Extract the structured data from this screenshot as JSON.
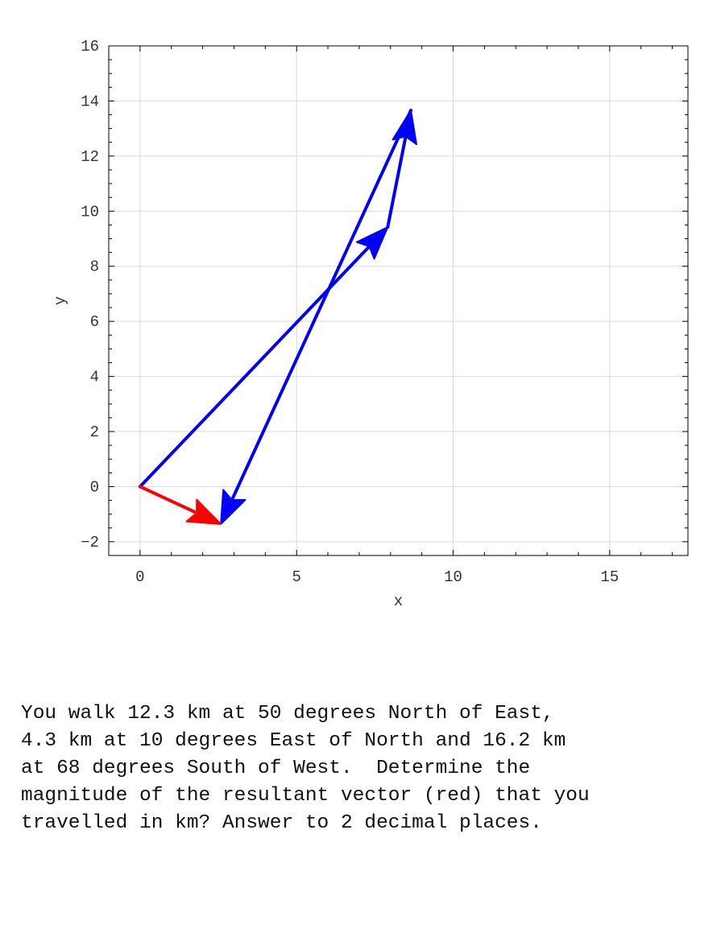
{
  "chart_data": {
    "type": "vector-diagram",
    "xlabel": "x",
    "ylabel": "y",
    "xlim": [
      -1,
      17.5
    ],
    "ylim": [
      -2.5,
      16
    ],
    "xticks": [
      0,
      5,
      10,
      15
    ],
    "yticks": [
      -2,
      0,
      2,
      4,
      6,
      8,
      10,
      12,
      14,
      16
    ],
    "grid": true,
    "vectors": [
      {
        "from": [
          0,
          0
        ],
        "to": [
          7.91,
          9.42
        ],
        "color": "#0000ff",
        "role": "component"
      },
      {
        "from": [
          7.91,
          9.42
        ],
        "to": [
          8.65,
          13.66
        ],
        "color": "#0000ff",
        "role": "component"
      },
      {
        "from": [
          8.65,
          13.66
        ],
        "to": [
          2.58,
          -1.36
        ],
        "color": "#0000ff",
        "role": "component"
      },
      {
        "from": [
          0,
          0
        ],
        "to": [
          2.58,
          -1.36
        ],
        "color": "#ff0000",
        "role": "resultant"
      }
    ]
  },
  "question": {
    "lines": [
      "You walk 12.3 km at 50 degrees North of East,",
      "4.3 km at 10 degrees East of North and 16.2 km",
      "at 68 degrees South of West.  Determine the",
      "magnitude of the resultant vector (red) that you",
      "travelled in km? Answer to 2 decimal places."
    ]
  }
}
